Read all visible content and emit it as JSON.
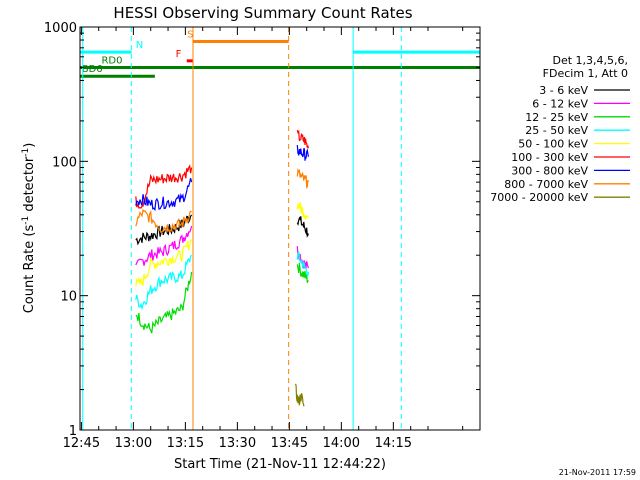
{
  "chart_data": {
    "type": "line",
    "title": "HESSI Observing Summary Count Rates",
    "xlabel": "Start Time (21-Nov-11 12:44:22)",
    "ylabel_main": "Count Rate (s",
    "ylabel_sup1": "-1",
    "ylabel_mid": " detector",
    "ylabel_sup2": "-1",
    "ylabel_end": ")",
    "y_scale": "log",
    "ylim": [
      1,
      1000
    ],
    "xlim_minutes": [
      -15.4,
      100
    ],
    "y_ticks": [
      {
        "value": 1,
        "label": "1"
      },
      {
        "value": 10,
        "label": "10"
      },
      {
        "value": 100,
        "label": "100"
      },
      {
        "value": 1000,
        "label": "1000"
      }
    ],
    "x_ticks": [
      {
        "minutes": -15,
        "label": "12:45"
      },
      {
        "minutes": 0,
        "label": "13:00"
      },
      {
        "minutes": 15,
        "label": "13:15"
      },
      {
        "minutes": 30,
        "label": "13:30"
      },
      {
        "minutes": 45,
        "label": "13:45"
      },
      {
        "minutes": 60,
        "label": "14:00"
      },
      {
        "minutes": 75,
        "label": "14:15"
      }
    ],
    "legend_header": [
      "Det 1,3,4,5,6,",
      "FDecim 1, Att 0"
    ],
    "legend_placement": "right",
    "series": [
      {
        "name": "3 - 6 keV",
        "color": "#000000",
        "segments": [
          {
            "x": [
              0.7,
              2.5,
              5,
              8,
              11,
              14,
              16.8
            ],
            "y": [
              26,
              27,
              28,
              30,
              31,
              34,
              40
            ]
          },
          {
            "x": [
              47.3,
              48.5,
              49.5,
              50.5
            ],
            "y": [
              38,
              35,
              32,
              29
            ]
          }
        ]
      },
      {
        "name": "6 - 12 keV",
        "color": "#ff00ff",
        "segments": [
          {
            "x": [
              0.7,
              2.5,
              5,
              8,
              11,
              14,
              16.8
            ],
            "y": [
              16,
              18,
              20,
              21,
              23,
              26,
              33
            ]
          },
          {
            "x": [
              47.3,
              48.5,
              49.5,
              50.5
            ],
            "y": [
              22,
              19,
              17,
              16
            ]
          }
        ]
      },
      {
        "name": "12 - 25 keV",
        "color": "#00dd00",
        "segments": [
          {
            "x": [
              0.7,
              2.5,
              5,
              8,
              11,
              14,
              16.8
            ],
            "y": [
              7.5,
              6.3,
              5.6,
              6.5,
              7.2,
              8.0,
              15
            ]
          },
          {
            "x": [
              47.3,
              48.5,
              49.5,
              50.5
            ],
            "y": [
              17,
              15,
              14,
              13
            ]
          }
        ]
      },
      {
        "name": "25 - 50 keV",
        "color": "#00ffff",
        "segments": [
          {
            "x": [
              0.7,
              2.5,
              5,
              8,
              11,
              14,
              16.8
            ],
            "y": [
              9.5,
              8.5,
              11,
              13,
              13.5,
              14,
              20
            ]
          },
          {
            "x": [
              47.3,
              48.5,
              49.5,
              50.5
            ],
            "y": [
              20,
              18,
              16,
              15
            ]
          }
        ]
      },
      {
        "name": "50 - 100 keV",
        "color": "#ffff00",
        "segments": [
          {
            "x": [
              0.7,
              2.5,
              5,
              8,
              11,
              14,
              16.8
            ],
            "y": [
              12,
              12.5,
              17,
              18,
              19,
              20,
              26
            ]
          },
          {
            "x": [
              47.3,
              48.5,
              49.5,
              50.5
            ],
            "y": [
              48,
              44,
              41,
              38
            ]
          }
        ]
      },
      {
        "name": "100 - 300 keV",
        "color": "#ff0000",
        "segments": [
          {
            "x": [
              0.7,
              2.5,
              5,
              8,
              11,
              14,
              16.8
            ],
            "y": [
              50,
              48,
              72,
              74,
              76,
              78,
              90
            ]
          },
          {
            "x": [
              47.3,
              48.5,
              49.5,
              50.5
            ],
            "y": [
              155,
              148,
              142,
              125
            ]
          }
        ]
      },
      {
        "name": "300 - 800 keV",
        "color": "#0000ff",
        "segments": [
          {
            "x": [
              0.7,
              2.5,
              5,
              8,
              11,
              14,
              16.8
            ],
            "y": [
              51,
              52,
              48,
              49,
              50,
              52,
              70
            ]
          },
          {
            "x": [
              47.3,
              48.5,
              49.5,
              50.5
            ],
            "y": [
              122,
              116,
              112,
              108
            ]
          }
        ]
      },
      {
        "name": "800 - 7000 keV",
        "color": "#ff8000",
        "segments": [
          {
            "x": [
              0.7,
              2.5,
              5,
              8,
              11,
              14,
              16.8
            ],
            "y": [
              35,
              41,
              38,
              32,
              33,
              34,
              42
            ]
          },
          {
            "x": [
              47.3,
              48.5,
              49.5,
              50.5
            ],
            "y": [
              82,
              76,
              72,
              70
            ]
          }
        ]
      },
      {
        "name": "7000 - 20000 keV",
        "color": "#808000",
        "segments": [
          {
            "x": [
              46.8,
              47.6,
              48.4,
              49.2
            ],
            "y": [
              2,
              1.6,
              1.8,
              1.5
            ]
          }
        ]
      }
    ],
    "flags": [
      {
        "label": "N",
        "color": "#00ffff",
        "y": 650,
        "segments": [
          [
            -15.4,
            -0.5
          ],
          [
            63.5,
            100
          ]
        ],
        "label_x": 0.7
      },
      {
        "label": "RD0",
        "color": "#008000",
        "y": 500,
        "segments": [
          [
            -15.4,
            100
          ]
        ],
        "label_x": -9.2
      },
      {
        "label": "BD6",
        "color": "#008000",
        "y": 430,
        "segments": [
          [
            -15.4,
            6.2
          ]
        ],
        "label_x": -14.9
      },
      {
        "label": "S",
        "color": "#ff8000",
        "y": 780,
        "segments": [
          [
            17.2,
            44.8
          ]
        ],
        "label_x": 15.5
      },
      {
        "label": "F",
        "color": "#ff0000",
        "y": 560,
        "segments": [
          [
            15.4,
            17.2
          ]
        ],
        "label_x": 12.2
      }
    ],
    "vlines": [
      {
        "minutes": -14.6,
        "color": "#00ffff",
        "dashed": false
      },
      {
        "minutes": -0.6,
        "color": "#00ffff",
        "dashed": true
      },
      {
        "minutes": 17.2,
        "color": "#ff8000",
        "dashed": false
      },
      {
        "minutes": 44.8,
        "color": "#ff8000",
        "dashed": true
      },
      {
        "minutes": 63.4,
        "color": "#00ffff",
        "dashed": false
      },
      {
        "minutes": 77.3,
        "color": "#00ffff",
        "dashed": true
      }
    ]
  },
  "footer_timestamp": "21-Nov-2011 17:59"
}
